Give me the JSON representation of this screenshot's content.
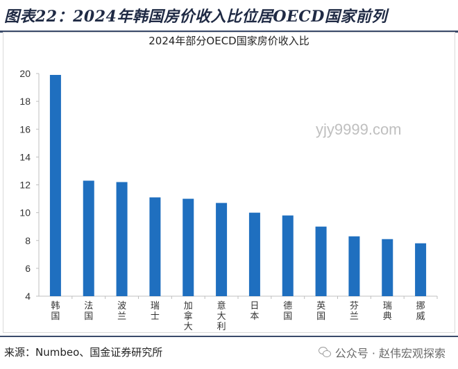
{
  "header": {
    "title": "图表22：2024年韩国房价收入比位居OECD国家前列"
  },
  "chart_data": {
    "type": "bar",
    "title": "2024年部分OECD国家房价收入比",
    "categories": [
      "韩国",
      "法国",
      "波兰",
      "瑞士",
      "加拿大",
      "意大利",
      "日本",
      "德国",
      "英国",
      "芬兰",
      "瑞典",
      "挪威"
    ],
    "values": [
      19.9,
      12.3,
      12.2,
      11.1,
      11.0,
      10.7,
      10.0,
      9.8,
      9.0,
      8.3,
      8.1,
      7.8
    ],
    "ylim": [
      4,
      20
    ],
    "yticks": [
      4,
      6,
      8,
      10,
      12,
      14,
      16,
      18,
      20
    ],
    "xlabel": "",
    "ylabel": "",
    "bar_color": "#1f6fbf",
    "grid": false,
    "legend": "none"
  },
  "watermark": "yjy9999.com",
  "footer": {
    "source": "来源：Numbeo、国金证券研究所",
    "wechat": "公众号 · 赵伟宏观探索"
  },
  "colors": {
    "header_rule": "#3a4a6a",
    "bar": "#1f6fbf"
  }
}
